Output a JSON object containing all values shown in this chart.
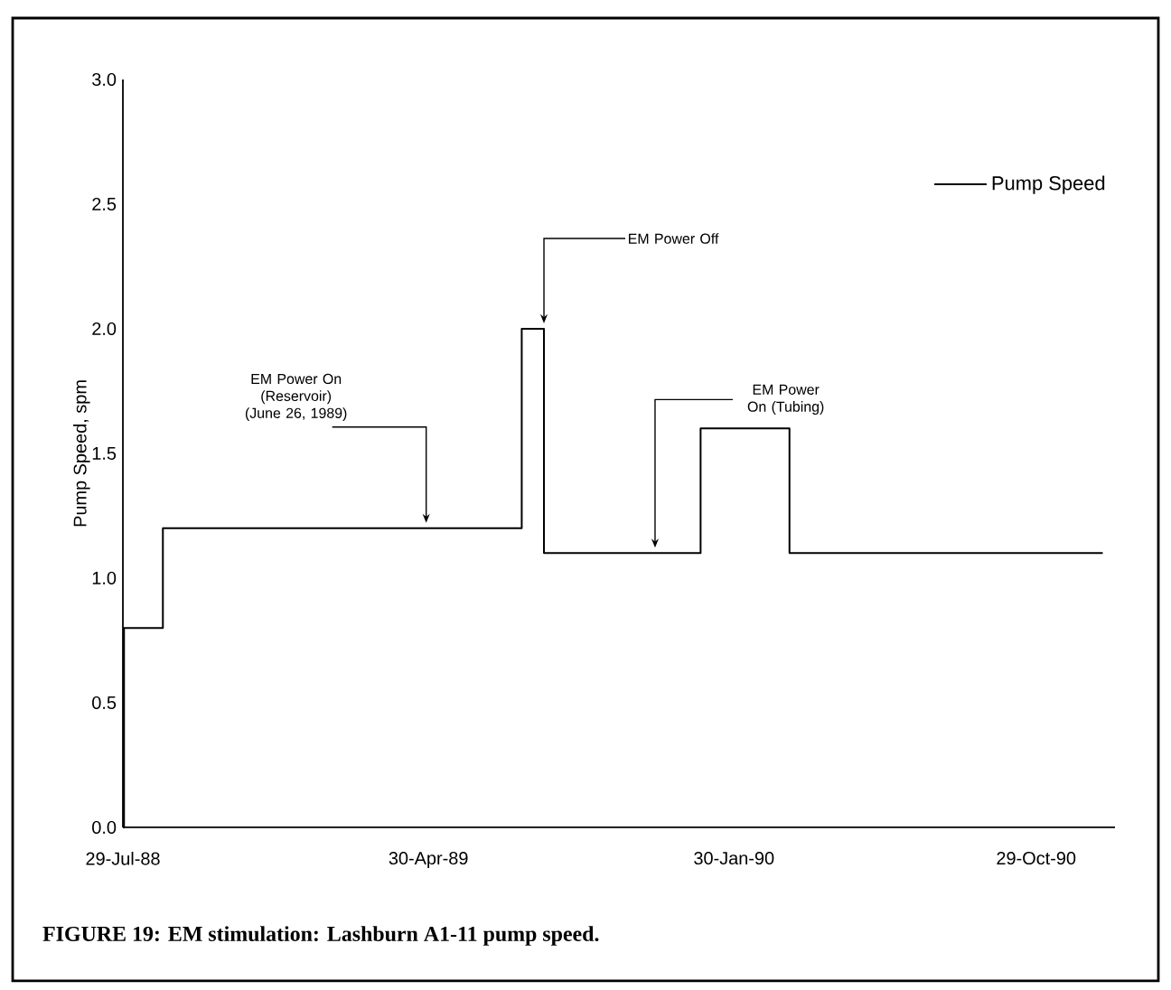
{
  "chart_data": {
    "type": "step",
    "title": "FIGURE 19: EM stimulation: Lashburn A1-11 pump speed.",
    "ylabel": "Pump Speed, spm",
    "x": [
      "1988-07-29",
      "1988-07-30",
      "1988-09-03",
      "1989-07-23",
      "1989-08-12",
      "1989-12-31",
      "1990-03-21",
      "1990-12-28"
    ],
    "series": [
      {
        "name": "Pump Speed",
        "color": "#000000",
        "values": [
          0,
          0.8,
          1.2,
          2.0,
          1.1,
          1.6,
          1.1,
          1.1
        ]
      }
    ],
    "xlim": [
      "1988-07-29",
      "1991-01-08"
    ],
    "xticks": [
      {
        "value": "1988-07-29",
        "label": "29-Jul-88"
      },
      {
        "value": "1989-04-30",
        "label": "30-Apr-89"
      },
      {
        "value": "1990-01-30",
        "label": "30-Jan-90"
      },
      {
        "value": "1990-10-29",
        "label": "29-Oct-90"
      }
    ],
    "ylim": [
      0,
      3
    ],
    "yticks": [
      {
        "value": 0,
        "label": "0.0"
      },
      {
        "value": 0.5,
        "label": "0.5"
      },
      {
        "value": 1,
        "label": "1.0"
      },
      {
        "value": 1.5,
        "label": "1.5"
      },
      {
        "value": 2,
        "label": "2.0"
      },
      {
        "value": 2.5,
        "label": "2.5"
      },
      {
        "value": 3,
        "label": "3.0"
      }
    ],
    "legend": "top right",
    "annotations": [
      {
        "text": "EM Power On (Reservoir) (June 26, 1989)",
        "x": "1989-04-28",
        "y": 1.2
      },
      {
        "text": "EM Power Off",
        "x": "1989-08-12",
        "y": 2.0
      },
      {
        "text": "EM Power On (Tubing)",
        "x": "1989-11-20",
        "y": 1.1
      }
    ]
  }
}
